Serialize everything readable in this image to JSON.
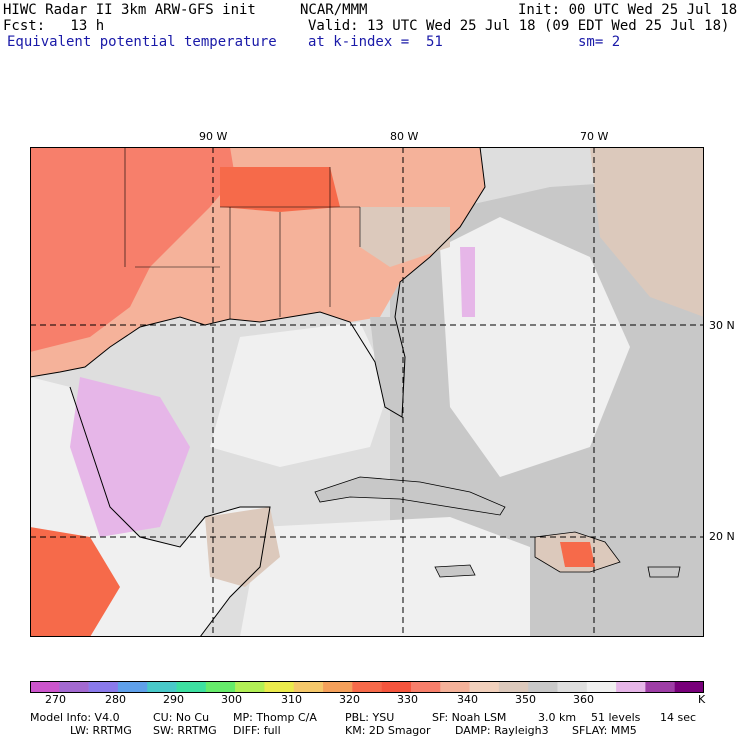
{
  "header": {
    "model_line": "HIWC Radar II 3km ARW-GFS init",
    "org": "NCAR/MMM",
    "init": "Init: 00 UTC Wed 25 Jul 18",
    "fcst": "Fcst:   13 h",
    "valid": "Valid: 13 UTC Wed 25 Jul 18 (09 EDT Wed 25 Jul 18)",
    "field": "Equivalent potential temperature",
    "level": "at k-index =  51",
    "smooth": "sm= 2"
  },
  "map": {
    "lon_labels": [
      "90 W",
      "80 W",
      "70 W"
    ],
    "lat_labels": [
      "30 N",
      "20 N"
    ]
  },
  "colorbar": {
    "colors": [
      "#cc55cc",
      "#a36ad1",
      "#8a7aeb",
      "#5fa0ea",
      "#49c9c9",
      "#3de0a1",
      "#66eb6b",
      "#b2ef56",
      "#ebeb4d",
      "#f5c86b",
      "#f4a05b",
      "#f66a4a",
      "#f5553d",
      "#f77f6b",
      "#f5b29a",
      "#f2d1bd",
      "#dcc9bc",
      "#c8c8c8",
      "#dedede",
      "#f0f0f0",
      "#e6b6e8",
      "#9e3ea6",
      "#78007a"
    ],
    "ticks": [
      "270",
      "280",
      "290",
      "300",
      "310",
      "320",
      "330",
      "340",
      "350",
      "360"
    ],
    "unit": "K"
  },
  "footer": {
    "line1": [
      "Model Info: V4.0",
      "CU: No Cu",
      "MP: Thomp C/A",
      "PBL: YSU",
      "SF: Noah LSM",
      "3.0 km",
      "51 levels",
      "14 sec"
    ],
    "line2": [
      "LW: RRTMG",
      "SW: RRTMG",
      "DIFF: full",
      "KM: 2D Smagor",
      "DAMP: Rayleigh3",
      "SFLAY: MM5"
    ]
  }
}
